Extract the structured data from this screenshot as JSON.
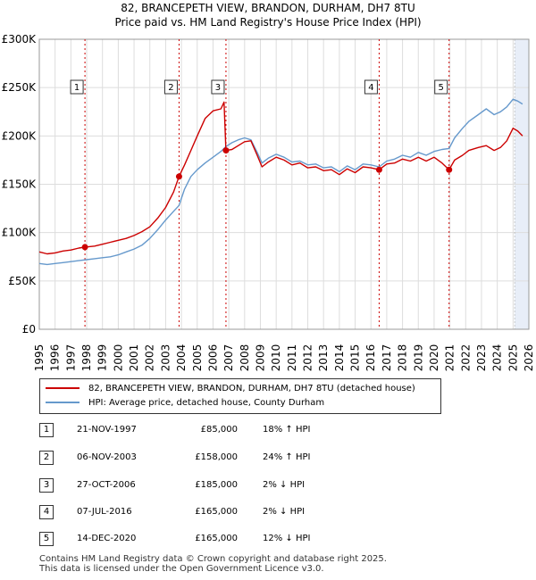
{
  "title_line1": "82, BRANCEPETH VIEW, BRANDON, DURHAM, DH7 8TU",
  "title_line2": "Price paid vs. HM Land Registry's House Price Index (HPI)",
  "legend": {
    "property_label": "82, BRANCEPETH VIEW, BRANDON, DURHAM, DH7 8TU (detached house)",
    "hpi_label": "HPI: Average price, detached house, County Durham"
  },
  "colors": {
    "property": "#cc0000",
    "hpi": "#6699cc",
    "shade": "#e8eef8"
  },
  "transactions": [
    {
      "num": "1",
      "date": "21-NOV-1997",
      "price": "£85,000",
      "hpi": "18% ↑ HPI"
    },
    {
      "num": "2",
      "date": "06-NOV-2003",
      "price": "£158,000",
      "hpi": "24% ↑ HPI"
    },
    {
      "num": "3",
      "date": "27-OCT-2006",
      "price": "£185,000",
      "hpi": "2% ↓ HPI"
    },
    {
      "num": "4",
      "date": "07-JUL-2016",
      "price": "£165,000",
      "hpi": "2% ↓ HPI"
    },
    {
      "num": "5",
      "date": "14-DEC-2020",
      "price": "£165,000",
      "hpi": "12% ↓ HPI"
    }
  ],
  "footer_line1": "Contains HM Land Registry data © Crown copyright and database right 2025.",
  "footer_line2": "This data is licensed under the Open Government Licence v3.0.",
  "chart_data": {
    "type": "line",
    "x_axis": {
      "min": 1995,
      "max": 2026,
      "ticks": [
        "1995",
        "1996",
        "1997",
        "1998",
        "1999",
        "2000",
        "2001",
        "2002",
        "2003",
        "2004",
        "2005",
        "2006",
        "2007",
        "2008",
        "2009",
        "2010",
        "2011",
        "2012",
        "2013",
        "2014",
        "2015",
        "2016",
        "2017",
        "2018",
        "2019",
        "2020",
        "2021",
        "2022",
        "2023",
        "2024",
        "2025",
        "2026"
      ]
    },
    "y_axis": {
      "min": 0,
      "max": 300000,
      "ticks": [
        {
          "value": 0,
          "label": "£0"
        },
        {
          "value": 50000,
          "label": "£50K"
        },
        {
          "value": 100000,
          "label": "£100K"
        },
        {
          "value": 150000,
          "label": "£150K"
        },
        {
          "value": 200000,
          "label": "£200K"
        },
        {
          "value": 250000,
          "label": "£250K"
        },
        {
          "value": 300000,
          "label": "£300K"
        }
      ]
    },
    "grid": true,
    "future_shade_from": 2025.1,
    "markers": [
      {
        "label": "1",
        "x": 1997.89,
        "y": 85000
      },
      {
        "label": "2",
        "x": 2003.85,
        "y": 158000
      },
      {
        "label": "3",
        "x": 2006.82,
        "y": 185000
      },
      {
        "label": "4",
        "x": 2016.52,
        "y": 165000
      },
      {
        "label": "5",
        "x": 2020.95,
        "y": 165000
      }
    ],
    "series": [
      {
        "name": "82, BRANCEPETH VIEW, BRANDON, DURHAM, DH7 8TU (detached house)",
        "points": [
          [
            1995.0,
            80000
          ],
          [
            1995.5,
            78000
          ],
          [
            1996.0,
            79000
          ],
          [
            1996.5,
            81000
          ],
          [
            1997.0,
            82000
          ],
          [
            1997.5,
            84000
          ],
          [
            1997.89,
            85000
          ],
          [
            1998.5,
            86000
          ],
          [
            1999.0,
            88000
          ],
          [
            1999.5,
            90000
          ],
          [
            2000.0,
            92000
          ],
          [
            2000.5,
            94000
          ],
          [
            2001.0,
            97000
          ],
          [
            2001.5,
            101000
          ],
          [
            2002.0,
            106000
          ],
          [
            2002.5,
            115000
          ],
          [
            2003.0,
            126000
          ],
          [
            2003.5,
            142000
          ],
          [
            2003.85,
            158000
          ],
          [
            2004.2,
            170000
          ],
          [
            2004.6,
            185000
          ],
          [
            2005.0,
            200000
          ],
          [
            2005.5,
            218000
          ],
          [
            2006.0,
            226000
          ],
          [
            2006.5,
            228000
          ],
          [
            2006.7,
            235000
          ],
          [
            2006.82,
            185000
          ],
          [
            2007.2,
            186000
          ],
          [
            2007.6,
            190000
          ],
          [
            2008.0,
            194000
          ],
          [
            2008.4,
            195000
          ],
          [
            2008.8,
            180000
          ],
          [
            2009.1,
            168000
          ],
          [
            2009.5,
            173000
          ],
          [
            2010.0,
            178000
          ],
          [
            2010.5,
            175000
          ],
          [
            2011.0,
            170000
          ],
          [
            2011.5,
            172000
          ],
          [
            2012.0,
            167000
          ],
          [
            2012.5,
            168000
          ],
          [
            2013.0,
            164000
          ],
          [
            2013.5,
            165000
          ],
          [
            2014.0,
            160000
          ],
          [
            2014.5,
            166000
          ],
          [
            2015.0,
            162000
          ],
          [
            2015.5,
            168000
          ],
          [
            2016.0,
            167000
          ],
          [
            2016.52,
            165000
          ],
          [
            2017.0,
            171000
          ],
          [
            2017.5,
            172000
          ],
          [
            2018.0,
            176000
          ],
          [
            2018.5,
            174000
          ],
          [
            2019.0,
            178000
          ],
          [
            2019.5,
            174000
          ],
          [
            2020.0,
            178000
          ],
          [
            2020.5,
            172000
          ],
          [
            2020.95,
            165000
          ],
          [
            2021.3,
            175000
          ],
          [
            2021.8,
            180000
          ],
          [
            2022.2,
            185000
          ],
          [
            2022.8,
            188000
          ],
          [
            2023.3,
            190000
          ],
          [
            2023.8,
            185000
          ],
          [
            2024.2,
            188000
          ],
          [
            2024.6,
            195000
          ],
          [
            2025.0,
            208000
          ],
          [
            2025.3,
            205000
          ],
          [
            2025.6,
            200000
          ]
        ]
      },
      {
        "name": "HPI: Average price, detached house, County Durham",
        "points": [
          [
            1995.0,
            68000
          ],
          [
            1995.5,
            67000
          ],
          [
            1996.0,
            68000
          ],
          [
            1996.5,
            69000
          ],
          [
            1997.0,
            70000
          ],
          [
            1997.5,
            71000
          ],
          [
            1998.0,
            72000
          ],
          [
            1998.5,
            73000
          ],
          [
            1999.0,
            74000
          ],
          [
            1999.5,
            75000
          ],
          [
            2000.0,
            77000
          ],
          [
            2000.5,
            80000
          ],
          [
            2001.0,
            83000
          ],
          [
            2001.5,
            87000
          ],
          [
            2002.0,
            94000
          ],
          [
            2002.5,
            103000
          ],
          [
            2003.0,
            113000
          ],
          [
            2003.5,
            122000
          ],
          [
            2003.85,
            128000
          ],
          [
            2004.2,
            145000
          ],
          [
            2004.6,
            158000
          ],
          [
            2005.0,
            165000
          ],
          [
            2005.5,
            172000
          ],
          [
            2006.0,
            178000
          ],
          [
            2006.5,
            184000
          ],
          [
            2006.82,
            189000
          ],
          [
            2007.2,
            193000
          ],
          [
            2007.6,
            196000
          ],
          [
            2008.0,
            198000
          ],
          [
            2008.4,
            196000
          ],
          [
            2008.8,
            183000
          ],
          [
            2009.1,
            172000
          ],
          [
            2009.5,
            177000
          ],
          [
            2010.0,
            181000
          ],
          [
            2010.5,
            178000
          ],
          [
            2011.0,
            173000
          ],
          [
            2011.5,
            174000
          ],
          [
            2012.0,
            170000
          ],
          [
            2012.5,
            171000
          ],
          [
            2013.0,
            167000
          ],
          [
            2013.5,
            168000
          ],
          [
            2014.0,
            163000
          ],
          [
            2014.5,
            169000
          ],
          [
            2015.0,
            165000
          ],
          [
            2015.5,
            171000
          ],
          [
            2016.0,
            170000
          ],
          [
            2016.52,
            168000
          ],
          [
            2017.0,
            174000
          ],
          [
            2017.5,
            176000
          ],
          [
            2018.0,
            180000
          ],
          [
            2018.5,
            178000
          ],
          [
            2019.0,
            183000
          ],
          [
            2019.5,
            180000
          ],
          [
            2020.0,
            184000
          ],
          [
            2020.5,
            186000
          ],
          [
            2020.95,
            187000
          ],
          [
            2021.3,
            198000
          ],
          [
            2021.8,
            208000
          ],
          [
            2022.2,
            215000
          ],
          [
            2022.8,
            222000
          ],
          [
            2023.3,
            228000
          ],
          [
            2023.8,
            222000
          ],
          [
            2024.2,
            225000
          ],
          [
            2024.6,
            230000
          ],
          [
            2025.0,
            238000
          ],
          [
            2025.3,
            236000
          ],
          [
            2025.6,
            233000
          ]
        ]
      }
    ]
  }
}
